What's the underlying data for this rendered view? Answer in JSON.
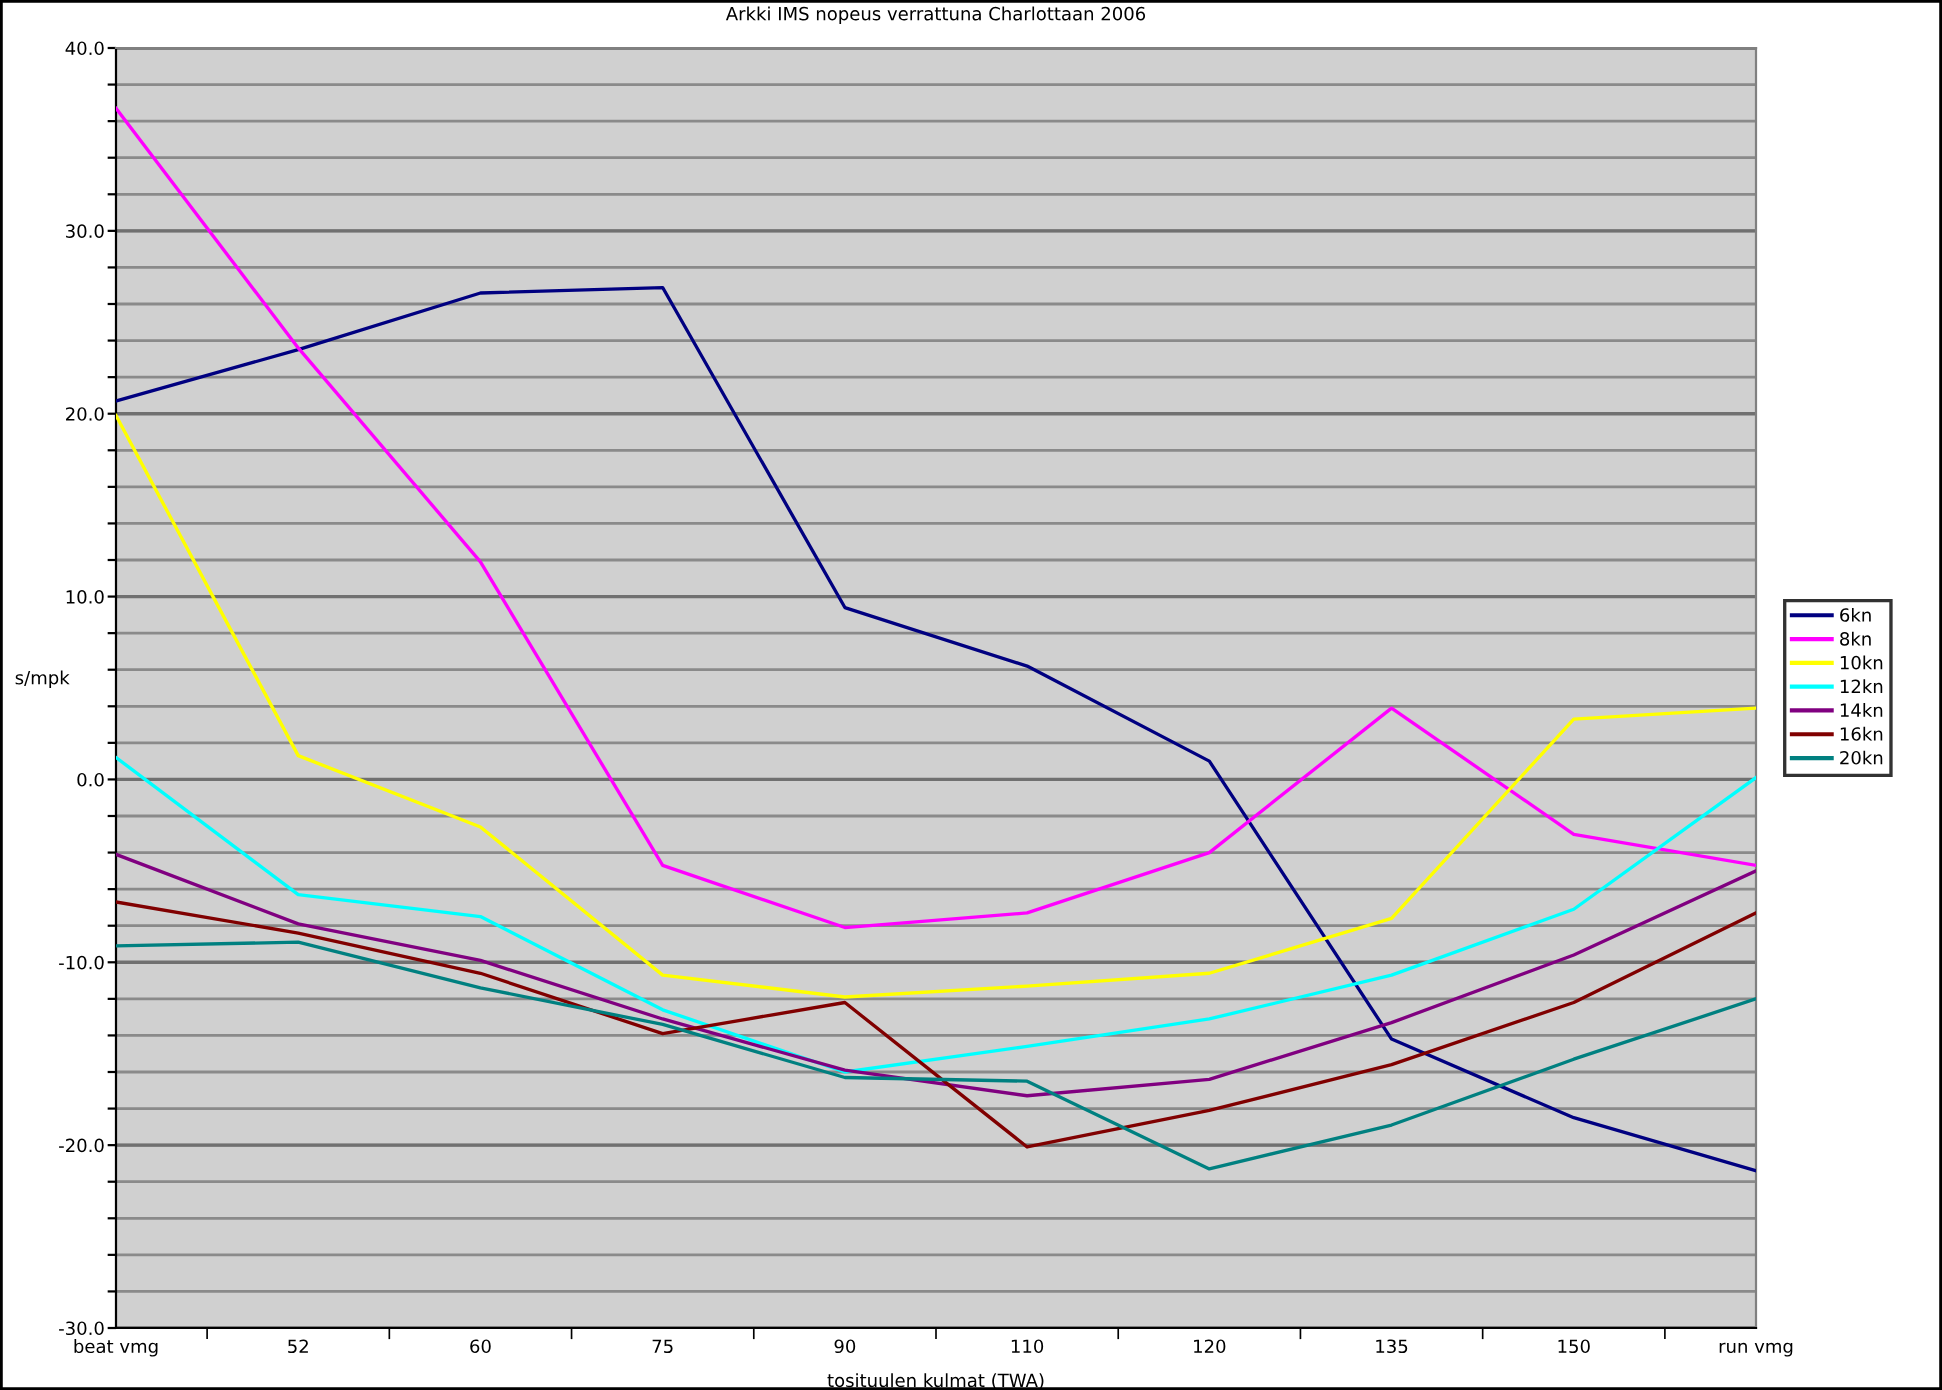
{
  "chart_data": {
    "type": "line",
    "title": "Arkki IMS nopeus verrattuna Charlottaan 2006",
    "xlabel": "tosituulen kulmat (TWA)",
    "ylabel": "s/mpk",
    "categories": [
      "beat vmg",
      "52",
      "60",
      "75",
      "90",
      "110",
      "120",
      "135",
      "150",
      "run vmg"
    ],
    "series": [
      {
        "name": "6kn",
        "color": "#000080",
        "values": [
          20.7,
          23.5,
          26.6,
          26.9,
          9.4,
          6.2,
          1.0,
          -14.2,
          -18.5,
          -21.4
        ]
      },
      {
        "name": "8kn",
        "color": "#ff00ff",
        "values": [
          36.7,
          23.6,
          11.9,
          -4.7,
          -8.1,
          -7.3,
          -4.0,
          3.9,
          -3.0,
          -4.7
        ]
      },
      {
        "name": "10kn",
        "color": "#ffff00",
        "values": [
          19.9,
          1.3,
          -2.6,
          -10.7,
          -11.9,
          -11.3,
          -10.6,
          -7.6,
          3.3,
          3.9
        ]
      },
      {
        "name": "12kn",
        "color": "#00ffff",
        "values": [
          1.2,
          -6.3,
          -7.5,
          -12.6,
          -16.0,
          -14.6,
          -13.1,
          -10.7,
          -7.1,
          0.1
        ]
      },
      {
        "name": "14kn",
        "color": "#800080",
        "values": [
          -4.1,
          -7.9,
          -9.9,
          -13.1,
          -15.9,
          -17.3,
          -16.4,
          -13.3,
          -9.6,
          -5.0
        ]
      },
      {
        "name": "16kn",
        "color": "#800000",
        "values": [
          -6.7,
          -8.4,
          -10.6,
          -13.9,
          -12.2,
          -20.1,
          -18.1,
          -15.6,
          -12.2,
          -7.3
        ]
      },
      {
        "name": "20kn",
        "color": "#008080",
        "values": [
          -9.1,
          -8.9,
          -11.4,
          -13.4,
          -16.3,
          -16.5,
          -21.3,
          -18.9,
          -15.3,
          -12.0
        ]
      }
    ],
    "ylim": [
      -30,
      40
    ],
    "yticks": [
      {
        "value": -30,
        "label": "-30.0"
      },
      {
        "value": -28,
        "label": null
      },
      {
        "value": -26,
        "label": null
      },
      {
        "value": -24,
        "label": null
      },
      {
        "value": -22,
        "label": null
      },
      {
        "value": -20,
        "label": "-20.0"
      },
      {
        "value": -18,
        "label": null
      },
      {
        "value": -16,
        "label": null
      },
      {
        "value": -14,
        "label": null
      },
      {
        "value": -12,
        "label": null
      },
      {
        "value": -10,
        "label": "-10.0"
      },
      {
        "value": -8,
        "label": null
      },
      {
        "value": -6,
        "label": null
      },
      {
        "value": -4,
        "label": null
      },
      {
        "value": -2,
        "label": null
      },
      {
        "value": 0,
        "label": "0.0"
      },
      {
        "value": 2,
        "label": null
      },
      {
        "value": 4,
        "label": null
      },
      {
        "value": 6,
        "label": null
      },
      {
        "value": 8,
        "label": null
      },
      {
        "value": 10,
        "label": "10.0"
      },
      {
        "value": 12,
        "label": null
      },
      {
        "value": 14,
        "label": null
      },
      {
        "value": 16,
        "label": null
      },
      {
        "value": 18,
        "label": null
      },
      {
        "value": 20,
        "label": "20.0"
      },
      {
        "value": 22,
        "label": null
      },
      {
        "value": 24,
        "label": null
      },
      {
        "value": 26,
        "label": null
      },
      {
        "value": 28,
        "label": null
      },
      {
        "value": 30,
        "label": "30.0"
      },
      {
        "value": 32,
        "label": null
      },
      {
        "value": 34,
        "label": null
      },
      {
        "value": 36,
        "label": null
      },
      {
        "value": 38,
        "label": null
      },
      {
        "value": 40,
        "label": "40.0"
      }
    ],
    "grid": "y",
    "legend": "right",
    "marker": "none",
    "line_style": "solid"
  }
}
